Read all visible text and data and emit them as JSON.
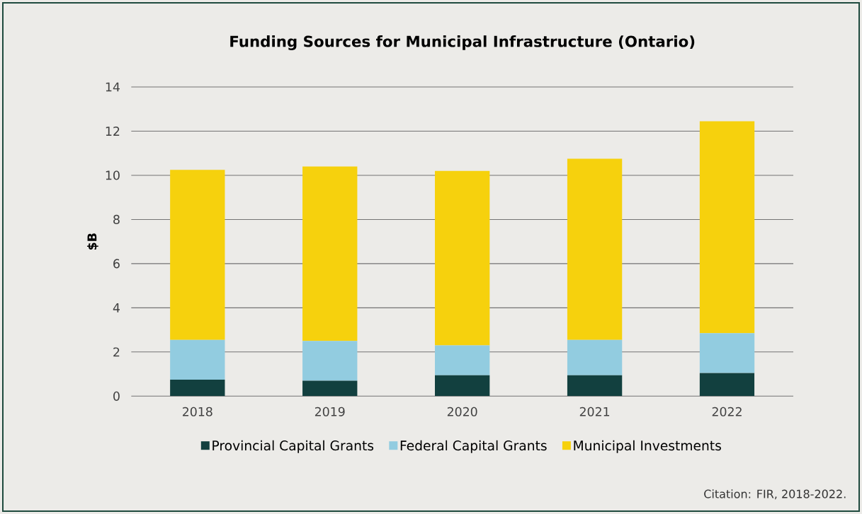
{
  "chart_data": {
    "type": "bar",
    "title": "Funding Sources for Municipal Infrastructure (Ontario)",
    "ylabel": "$B",
    "categories": [
      "2018",
      "2019",
      "2020",
      "2021",
      "2022"
    ],
    "stacked": true,
    "series": [
      {
        "name": "Provincial Capital Grants",
        "color": "#12403f",
        "values": [
          0.75,
          0.7,
          0.95,
          0.95,
          1.05
        ]
      },
      {
        "name": "Federal Capital Grants",
        "color": "#92cce0",
        "values": [
          1.8,
          1.8,
          1.35,
          1.6,
          1.8
        ]
      },
      {
        "name": "Municipal Investments",
        "color": "#f6d10d",
        "values": [
          7.7,
          7.9,
          7.9,
          8.2,
          9.6
        ]
      }
    ],
    "ylim": [
      0,
      14
    ],
    "yticks": [
      0,
      2,
      4,
      6,
      8,
      10,
      12,
      14
    ],
    "grid": "y",
    "legend": "bottom",
    "annotations": [
      "Citation: FIR, 2018-2022."
    ]
  }
}
